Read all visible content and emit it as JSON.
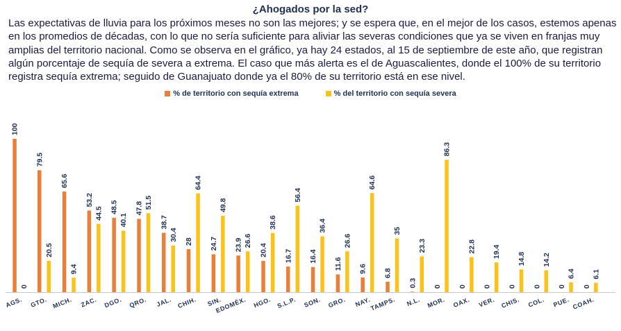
{
  "title": "¿Ahogados por la sed?",
  "intro": "Las expectativas de lluvia para los próximos meses no son las mejores; y se espera que, en el mejor de los casos, estemos apenas en los promedios de décadas, con lo que no sería suficiente para aliviar las severas condiciones que ya se viven en franjas muy amplias del territorio nacional. Como se observa en el gráfico, ya hay 24 estados, al 15 de septiembre de este año, que registran algún porcentaje de sequía de severa a extrema. El caso que más alerta es el de Aguascalientes, donde el 100% de su territorio registra sequía extrema; seguido de Guanajuato donde ya el 80% de su territorio está en ese nivel.",
  "colors": {
    "extreme": "#e8803a",
    "severe": "#fbc21a",
    "axis": "#c8c8c8",
    "label": "#1f2f4f"
  },
  "chart_data": {
    "type": "bar",
    "categories": [
      "AGS.",
      "GTO.",
      "MICH.",
      "ZAC.",
      "DGO.",
      "QRO.",
      "JAL.",
      "CHIH.",
      "SIN.",
      "EDOMÉX.",
      "HGO.",
      "S.L.P.",
      "SON.",
      "GRO.",
      "NAY.",
      "TAMPS.",
      "N.L.",
      "MOR.",
      "OAX.",
      "VER.",
      "CHIS.",
      "COL.",
      "PUE.",
      "COAH."
    ],
    "series": [
      {
        "name": "% de territorio con sequía extrema",
        "color": "#e8803a",
        "values": [
          100,
          79.5,
          65.6,
          53.2,
          48.5,
          47.8,
          38.7,
          28,
          24.7,
          23.9,
          20.4,
          16.7,
          16.4,
          11.6,
          9.6,
          6.8,
          0.3,
          0,
          0,
          0,
          0,
          0,
          0,
          0
        ]
      },
      {
        "name": "% del territorio con sequía severa",
        "color": "#fbc21a",
        "values": [
          0,
          20.5,
          9.4,
          44.5,
          40.1,
          51.5,
          30.4,
          64.4,
          49.8,
          26.6,
          38.6,
          56.4,
          36.4,
          26.6,
          64.6,
          35,
          23.3,
          86.3,
          22.8,
          19.4,
          14.8,
          14.2,
          6.4,
          6.1
        ]
      }
    ],
    "ylim": [
      0,
      100
    ],
    "grid": false,
    "legend_position": "top"
  }
}
